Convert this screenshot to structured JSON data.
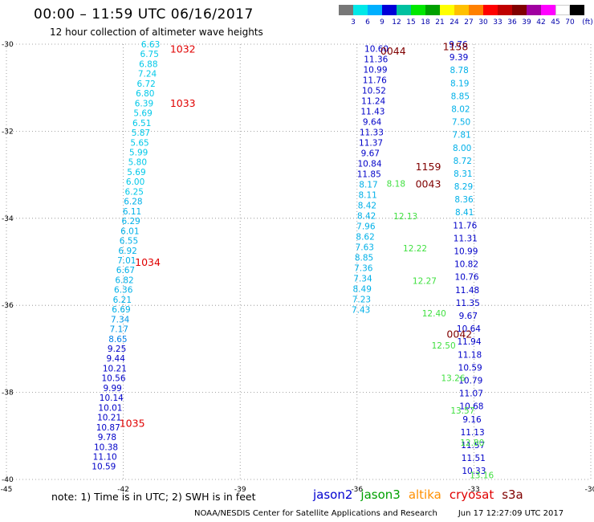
{
  "header": {
    "title": "00:00 – 11:59 UTC 06/16/2017",
    "subtitle": "12 hour collection of altimeter wave heights"
  },
  "legend": {
    "unit": "(ft)",
    "colors": [
      "#777777",
      "#00e8e8",
      "#00b0ff",
      "#0000d8",
      "#00c0a0",
      "#00e800",
      "#00a000",
      "#ffff00",
      "#ffc000",
      "#ff8000",
      "#ff0000",
      "#c00000",
      "#800000",
      "#a000a0",
      "#ff00ff",
      "#ffffff",
      "#000000"
    ],
    "labels": [
      "3",
      "6",
      "9",
      "12",
      "15",
      "18",
      "21",
      "24",
      "27",
      "30",
      "33",
      "36",
      "39",
      "42",
      "45",
      "70"
    ]
  },
  "axes": {
    "x_ticks": [
      "-45",
      "-42",
      "-39",
      "-36",
      "-33",
      "-30"
    ],
    "y_ticks": [
      "-30",
      "-32",
      "-34",
      "-36",
      "-38",
      "-40"
    ]
  },
  "tracks": [
    {
      "values": [
        "6.63",
        "6.75",
        "6.88",
        "7.24",
        "6.72",
        "6.80",
        "6.39",
        "5.69",
        "6.51",
        "5.87",
        "5.65",
        "5.99",
        "5.80",
        "5.69",
        "6.00",
        "6.25",
        "6.28",
        "6.11",
        "6.29",
        "6.01",
        "6.55",
        "6.92",
        "7.01",
        "6.67",
        "6.82",
        "6.36",
        "6.21",
        "6.69",
        "7.34",
        "7.17",
        "8.65",
        "9.25",
        "9.44",
        "10.21",
        "10.56",
        "9.99",
        "10.14",
        "10.01",
        "10.21",
        "10.87",
        "9.78",
        "10.38",
        "11.10",
        "10.59"
      ],
      "colors": [
        "#00c8e8",
        "#00c8e8",
        "#00c8e8",
        "#00c8e8",
        "#00c8e8",
        "#00c8e8",
        "#00c8e8",
        "#00c8e8",
        "#00c8e8",
        "#00c8e8",
        "#00c8e8",
        "#00c8e8",
        "#00c8e8",
        "#00c8e8",
        "#00c8e8",
        "#00c8e8",
        "#00b0e8",
        "#00b0e8",
        "#00b0e8",
        "#00b0e8",
        "#00b0e8",
        "#00b0e8",
        "#00b0e8",
        "#00b0e8",
        "#00b0e8",
        "#00b0e8",
        "#00b0e8",
        "#00b0e8",
        "#0098e8",
        "#0098e8",
        "#0080e8",
        "#0000c8",
        "#0000c8",
        "#0000c8",
        "#0000c8",
        "#0000c8",
        "#0000c8",
        "#0000c8",
        "#0000c8",
        "#0000c8",
        "#0000c8",
        "#0000c8",
        "#0000c8",
        "#0000c8"
      ],
      "start": [
        -41.3,
        -30.0
      ],
      "end": [
        -42.5,
        -39.7
      ]
    },
    {
      "values": [
        "10.60",
        "11.36",
        "10.99",
        "11.76",
        "10.52",
        "11.24",
        "11.43",
        "9.64",
        "11.33",
        "11.37",
        "9.67",
        "10.84",
        "11.85",
        "8.17",
        "8.11",
        "8.42",
        "8.42",
        "7.96",
        "8.62",
        "7.63",
        "8.85",
        "7.36",
        "7.34",
        "8.49",
        "7.23",
        "7.43"
      ],
      "colors": [
        "#0000c8",
        "#0000c8",
        "#0000c8",
        "#0000c8",
        "#0000c8",
        "#0000c8",
        "#0000c8",
        "#0000c8",
        "#0000c8",
        "#0000c8",
        "#0000c8",
        "#0000c8",
        "#0000c8",
        "#00b0e8",
        "#00b0e8",
        "#00b0e8",
        "#00b0e8",
        "#00b0e8",
        "#00b0e8",
        "#00b0e8",
        "#00b0e8",
        "#00b0e8",
        "#00b0e8",
        "#00b0e8",
        "#00b0e8",
        "#00b0e8"
      ],
      "start": [
        -35.5,
        -30.1
      ],
      "end": [
        -35.9,
        -36.1
      ]
    },
    {
      "values": [
        "9.76",
        "9.39",
        "8.78",
        "8.19",
        "8.85",
        "8.02",
        "7.50",
        "7.81",
        "8.00",
        "8.72",
        "8.31",
        "8.29",
        "8.36",
        "8.41",
        "11.76",
        "11.31",
        "10.99",
        "10.82",
        "10.76",
        "11.48",
        "11.35",
        "9.67",
        "10.64",
        "11.94",
        "11.18",
        "10.59",
        "10.79",
        "11.07",
        "10.68",
        "9.16",
        "11.13",
        "11.57",
        "11.51",
        "10.33"
      ],
      "colors": [
        "#0000c8",
        "#0000c8",
        "#00b0e8",
        "#00b0e8",
        "#00b0e8",
        "#00b0e8",
        "#00b0e8",
        "#00b0e8",
        "#00b0e8",
        "#00b0e8",
        "#00b0e8",
        "#00b0e8",
        "#00b0e8",
        "#00b0e8",
        "#0000c8",
        "#0000c8",
        "#0000c8",
        "#0000c8",
        "#0000c8",
        "#0000c8",
        "#0000c8",
        "#0000c8",
        "#0000c8",
        "#0000c8",
        "#0000c8",
        "#0000c8",
        "#0000c8",
        "#0000c8",
        "#0000c8",
        "#0000c8",
        "#0000c8",
        "#0000c8",
        "#0000c8",
        "#0000c8"
      ],
      "start": [
        -33.4,
        -30.0
      ],
      "end": [
        -33.0,
        -39.8
      ]
    },
    {
      "values": [
        "8.18",
        "12.13",
        "12.22",
        "12.27",
        "12.40",
        "12.50",
        "13.26",
        "13.57",
        "12.80",
        "13.16"
      ],
      "colors": [
        "#40e040",
        "#40e040",
        "#40e040",
        "#40e040",
        "#40e040",
        "#40e040",
        "#40e040",
        "#40e040",
        "#40e040",
        "#40e040"
      ],
      "start": [
        -35.0,
        -33.2
      ],
      "end": [
        -32.8,
        -39.9
      ]
    }
  ],
  "time_labels": [
    {
      "text": "1032",
      "lon": -40.8,
      "lat": -30.1,
      "color": "#e00000"
    },
    {
      "text": "1033",
      "lon": -40.8,
      "lat": -31.35,
      "color": "#e00000"
    },
    {
      "text": "1034",
      "lon": -41.7,
      "lat": -35.0,
      "color": "#e00000"
    },
    {
      "text": "1035",
      "lon": -42.1,
      "lat": -38.7,
      "color": "#e00000"
    },
    {
      "text": "0044",
      "lon": -35.4,
      "lat": -30.15,
      "color": "#800000"
    },
    {
      "text": "1158",
      "lon": -33.8,
      "lat": -30.05,
      "color": "#800000"
    },
    {
      "text": "1159",
      "lon": -34.5,
      "lat": -32.8,
      "color": "#800000"
    },
    {
      "text": "0043",
      "lon": -34.5,
      "lat": -33.2,
      "color": "#800000"
    },
    {
      "text": "0042",
      "lon": -33.7,
      "lat": -36.65,
      "color": "#800000"
    }
  ],
  "note": "note:  1) Time is in UTC;  2) SWH is in feet",
  "satellites": [
    {
      "name": "jason2",
      "color": "#0000d0"
    },
    {
      "name": "jason3",
      "color": "#00a000"
    },
    {
      "name": "altika",
      "color": "#ff9000"
    },
    {
      "name": "cryosat",
      "color": "#e00000"
    },
    {
      "name": "s3a",
      "color": "#800000"
    }
  ],
  "footer": {
    "credit": "NOAA/NESDIS Center for Satellite Applications and Research",
    "timestamp": "Jun 17 12:27:09 UTC 2017"
  }
}
